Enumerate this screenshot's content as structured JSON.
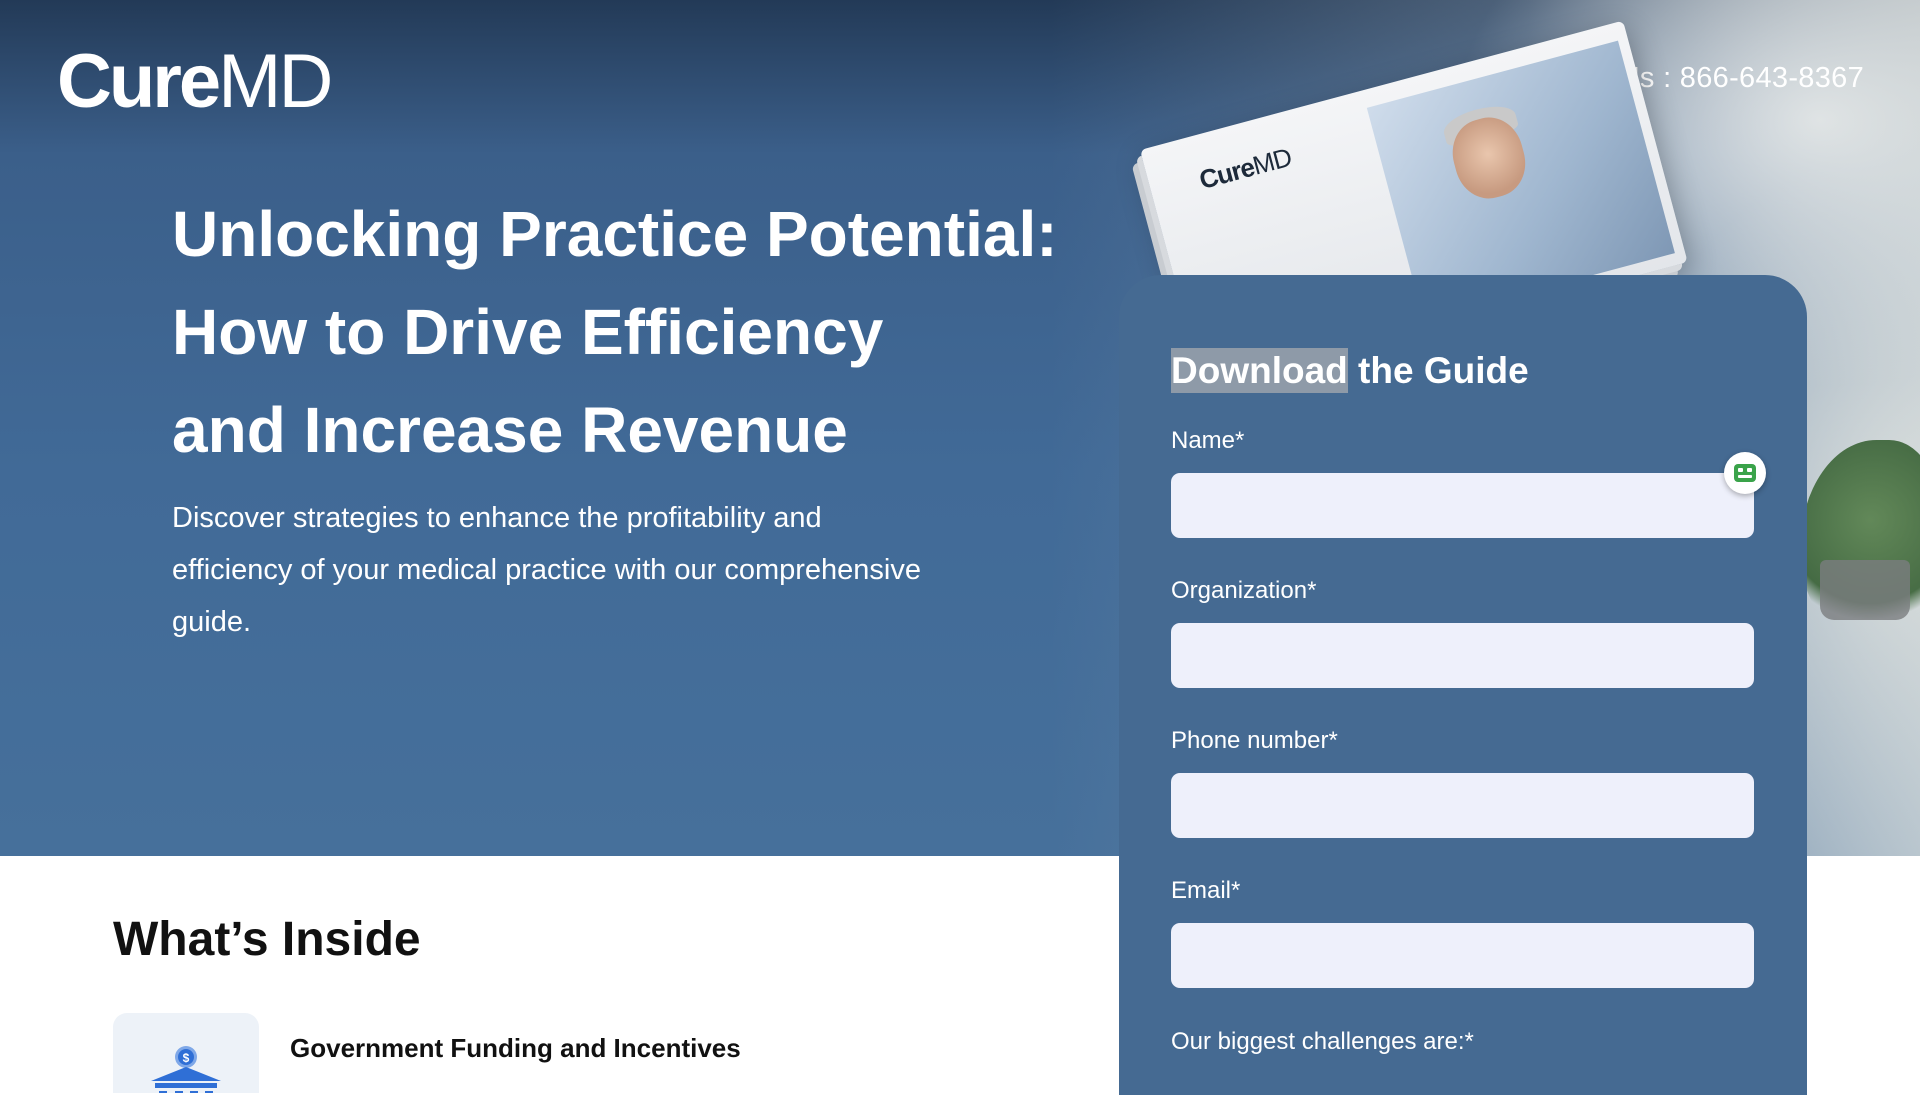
{
  "brand": {
    "logo_bold": "Cure",
    "logo_light": "MD"
  },
  "header": {
    "contact": "Contact Us : 866-643-8367"
  },
  "hero": {
    "headline_lines": [
      "Unlocking Practice Potential:",
      "How to Drive Efficiency",
      "and Increase Revenue"
    ],
    "subtext": "Discover strategies to enhance the profitability and efficiency of your medical practice with our comprehensive guide."
  },
  "book": {
    "logo_bold": "Cure",
    "logo_light": "MD"
  },
  "form": {
    "title_highlight": "Download",
    "title_rest": " the Guide",
    "fields": [
      {
        "label": "Name*",
        "value": "",
        "placeholder": ""
      },
      {
        "label": "Organization*",
        "value": "",
        "placeholder": ""
      },
      {
        "label": "Phone number*",
        "value": "",
        "placeholder": ""
      },
      {
        "label": "Email*",
        "value": "",
        "placeholder": ""
      }
    ],
    "challenges_label": "Our biggest challenges are:*"
  },
  "inside": {
    "title": "What’s Inside",
    "items": [
      {
        "title": "Government Funding and Incentives",
        "icon": "bank-dollar-icon"
      }
    ]
  },
  "colors": {
    "hero_blue": "#416a97",
    "form_card": "#456a92",
    "input_bg": "#eef0fb",
    "title_highlight": "#8e9aa8",
    "icon_blue": "#2f6fd6"
  }
}
